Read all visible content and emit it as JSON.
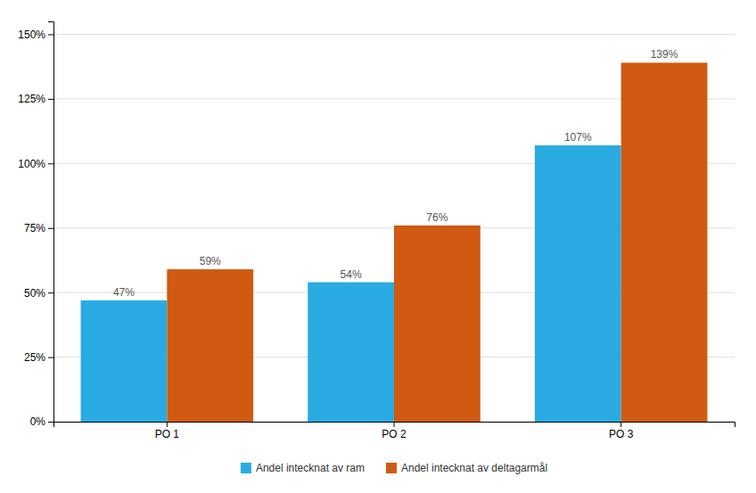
{
  "chart_data": {
    "type": "bar",
    "categories": [
      "PO 1",
      "PO 2",
      "PO 3"
    ],
    "series": [
      {
        "name": "Andel intecknat av ram",
        "color": "#29ABE2",
        "values": [
          47,
          54,
          107
        ],
        "value_labels": [
          "47%",
          "54%",
          "107%"
        ]
      },
      {
        "name": "Andel intecknat av deltagarmål",
        "color": "#D05A11",
        "values": [
          59,
          76,
          139
        ],
        "value_labels": [
          "59%",
          "76%",
          "139%"
        ]
      }
    ],
    "ylim": [
      0,
      155
    ],
    "yticks": [
      {
        "value": 0,
        "label": "0%"
      },
      {
        "value": 25,
        "label": "25%"
      },
      {
        "value": 50,
        "label": "50%"
      },
      {
        "value": 75,
        "label": "75%"
      },
      {
        "value": 100,
        "label": "100%"
      },
      {
        "value": 125,
        "label": "125%"
      },
      {
        "value": 150,
        "label": "150%"
      }
    ],
    "grid": true,
    "data_labels": true,
    "legend": "bottom"
  }
}
